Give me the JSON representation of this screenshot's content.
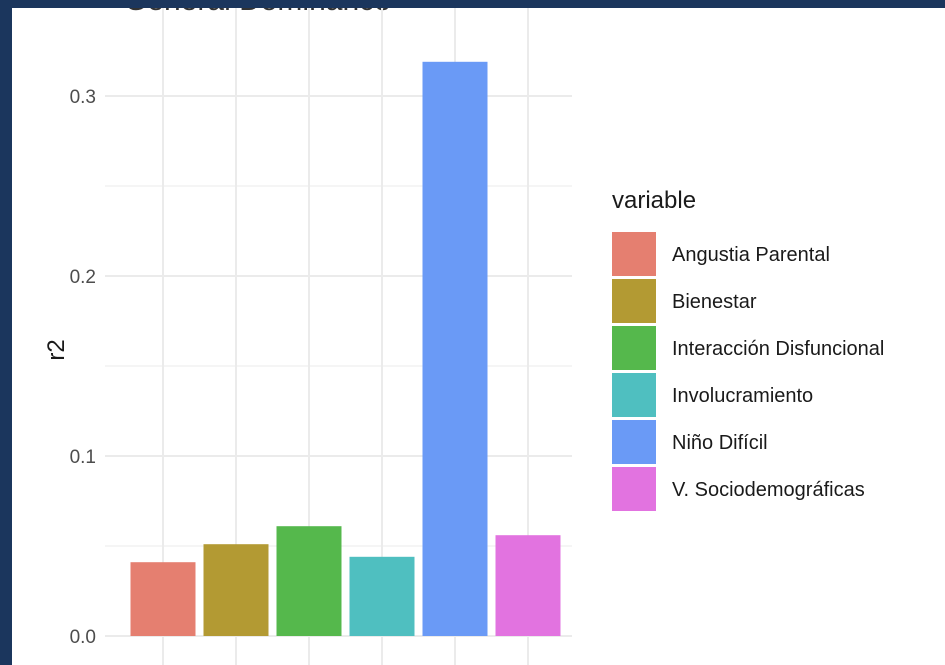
{
  "colors": {
    "frame": "#1b365d",
    "panel": "#ffffff",
    "grid": "#ebebeb",
    "series": [
      "#e57f70",
      "#b39a33",
      "#55b84c",
      "#4fbfc0",
      "#6a9af6",
      "#e273e0"
    ]
  },
  "chart_data": {
    "type": "bar",
    "title": "General Dominance",
    "xlabel": "",
    "ylabel": "r2",
    "ylim": [
      0,
      0.32
    ],
    "yticks": [
      0.0,
      0.1,
      0.2,
      0.3
    ],
    "ytick_labels": [
      "0.0",
      "0.1",
      "0.2",
      "0.3"
    ],
    "grid": true,
    "legend_position": "right",
    "legend_title": "variable",
    "categories": [
      "Angustia Parental",
      "Bienestar",
      "Interacción Disfuncional",
      "Involucramiento",
      "Niño Difícil",
      "V. Sociodemográficas"
    ],
    "values": [
      0.041,
      0.051,
      0.061,
      0.044,
      0.319,
      0.056
    ]
  }
}
